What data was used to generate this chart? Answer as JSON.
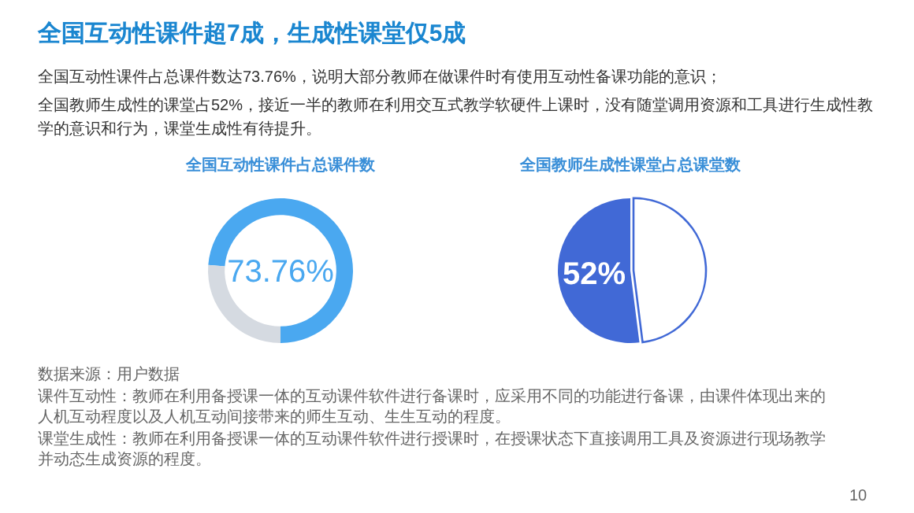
{
  "chart_data": [
    {
      "type": "other",
      "title": "全国互动性课件超7成，生成性课堂仅5成",
      "annotations": [
        "全国互动性课件占总课件数达73.76%，说明大部分教师在做课件时有使用互动性备课功能的意识；",
        "全国教师生成性的课堂占52%，接近一半的教师在利用交互式教学软硬件上课时，没有随堂调用资源和工具进行生成性教学的意识和行为，课堂生成性有待提升。"
      ]
    },
    {
      "type": "donut",
      "title": "全国互动性课件占总课件数",
      "categories": [
        null,
        null
      ],
      "values": [
        73.76,
        26.24
      ],
      "colors": [
        "#4aa8f0",
        "#d5dae1"
      ],
      "value_labels": [
        "73.76%",
        null
      ]
    },
    {
      "type": "pie",
      "title": "全国教师生成性课堂占总课堂数",
      "categories": [
        null,
        null
      ],
      "values": [
        52,
        48
      ],
      "colors": [
        "#4169d6",
        "#ffffff"
      ],
      "value_labels": [
        "52%",
        null
      ]
    },
    {
      "type": "other",
      "annotations": [
        "数据来源：用户数据",
        "课件互动性：教师在利用备授课一体的互动课件软件进行备课时，应采用不同的功能进行备课，由课件体现出来的人机互动程度以及人机互动间接带来的师生互动、生生互动的程度。",
        "课堂生成性：教师在利用备授课一体的互动课件软件进行授课时，在授课状态下直接调用工具及资源进行现场教学并动态生成资源的程度。",
        "10"
      ]
    }
  ]
}
